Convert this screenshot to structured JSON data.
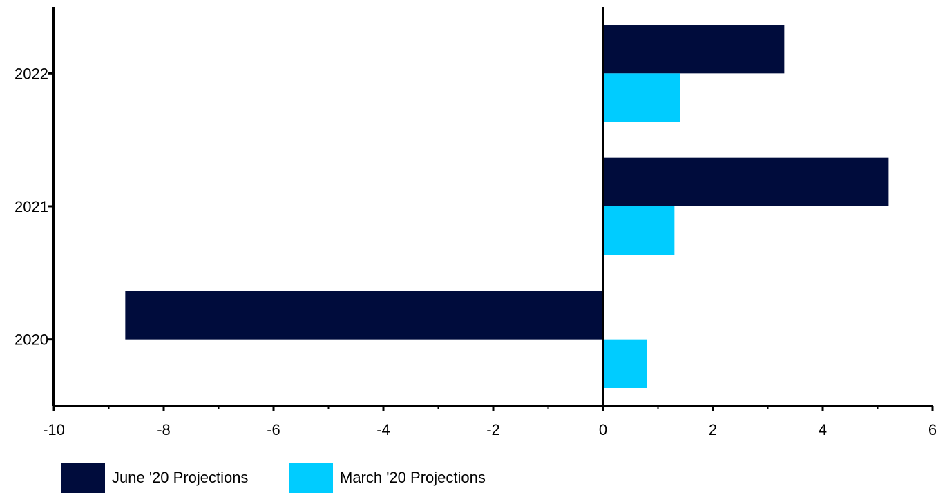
{
  "chart_data": {
    "type": "bar",
    "orientation": "horizontal",
    "categories": [
      "2020",
      "2021",
      "2022"
    ],
    "series": [
      {
        "name": "June '20 Projections",
        "color": "#000C3C",
        "values": [
          -8.7,
          5.2,
          3.3
        ]
      },
      {
        "name": "March '20 Projections",
        "color": "#00CCFF",
        "values": [
          0.8,
          1.3,
          1.4
        ]
      }
    ],
    "title": "",
    "xlabel": "",
    "ylabel": "",
    "xlim": [
      -10,
      6
    ],
    "xticks": [
      "-10",
      "-8",
      "-6",
      "-4",
      "-2",
      "0",
      "2",
      "4",
      "6"
    ],
    "grid": false,
    "legend": "bottom"
  }
}
